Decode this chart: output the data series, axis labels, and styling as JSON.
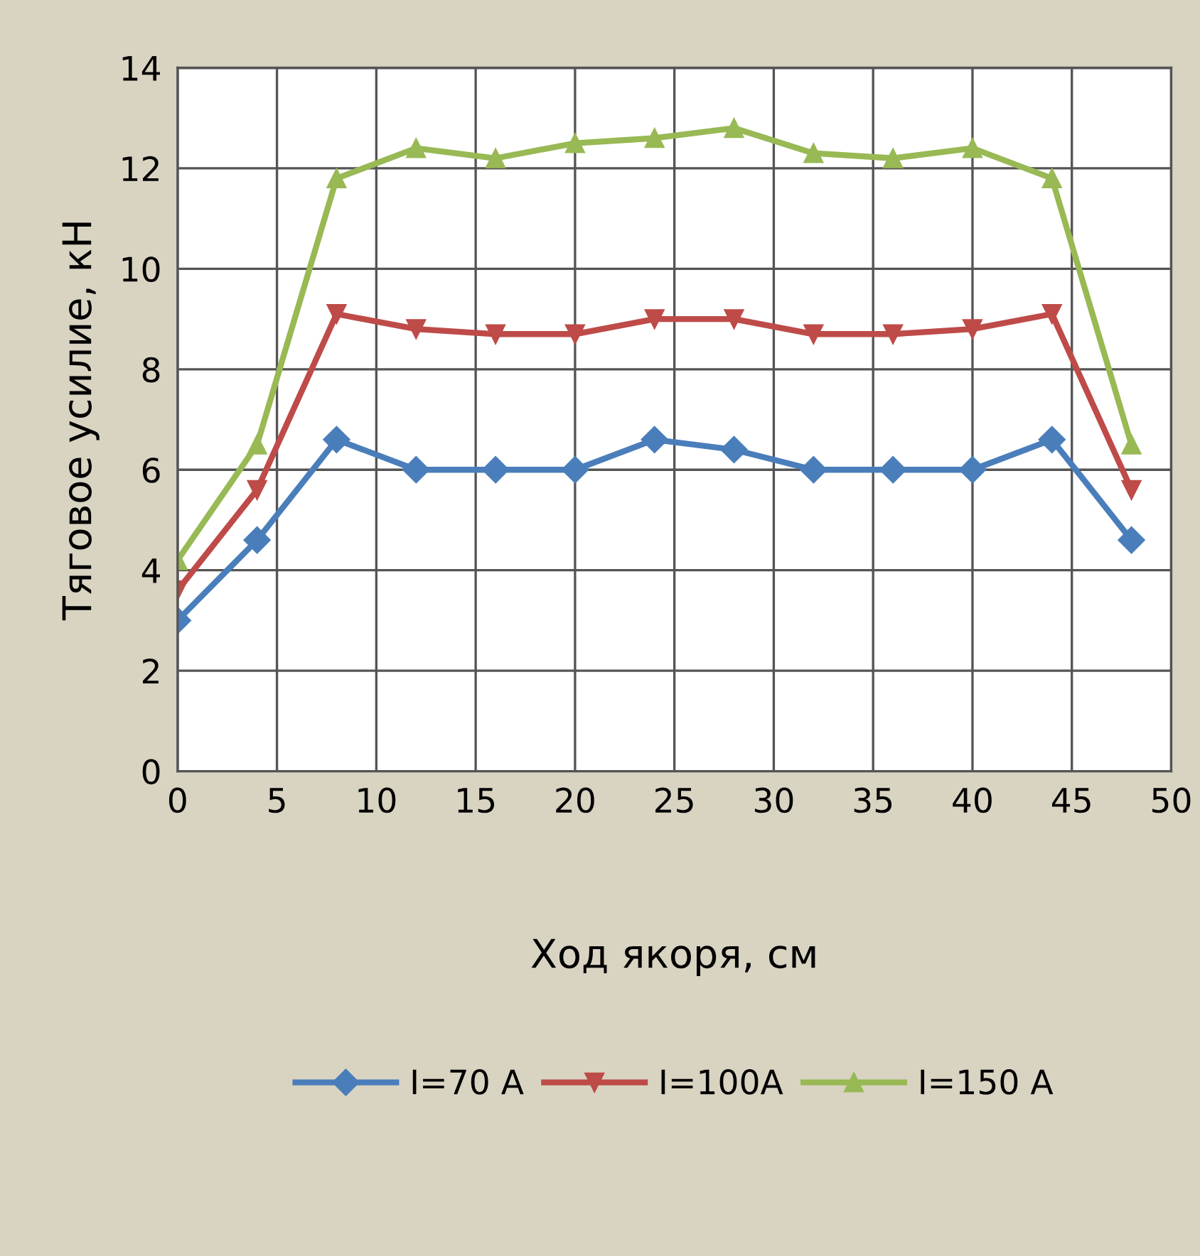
{
  "chart_data": {
    "type": "line",
    "xlabel": "Ход якоря, см",
    "ylabel": "Тяговое усилие, кН",
    "x": [
      0,
      4,
      8,
      12,
      16,
      20,
      24,
      28,
      32,
      36,
      40,
      44,
      48
    ],
    "series": [
      {
        "name": "I=70 A",
        "color": "#4a7ebb",
        "marker": "diamond",
        "values": [
          3.0,
          4.6,
          6.6,
          6.0,
          6.0,
          6.0,
          6.6,
          6.4,
          6.0,
          6.0,
          6.0,
          6.6,
          4.6
        ]
      },
      {
        "name": "I=100A",
        "color": "#be4b48",
        "marker": "triangle-down",
        "values": [
          3.6,
          5.6,
          9.1,
          8.8,
          8.7,
          8.7,
          9.0,
          9.0,
          8.7,
          8.7,
          8.8,
          9.1,
          5.6
        ]
      },
      {
        "name": "I=150 A",
        "color": "#98b954",
        "marker": "triangle",
        "values": [
          4.2,
          6.5,
          11.8,
          12.4,
          12.2,
          12.5,
          12.6,
          12.8,
          12.3,
          12.2,
          12.4,
          11.8,
          6.5
        ]
      }
    ],
    "xlim": [
      0,
      50
    ],
    "xticks": [
      0,
      5,
      10,
      15,
      20,
      25,
      30,
      35,
      40,
      45,
      50
    ],
    "ylim": [
      0,
      14
    ],
    "yticks": [
      0,
      2,
      4,
      6,
      8,
      10,
      12,
      14
    ],
    "grid": true,
    "legend": "bottom"
  }
}
